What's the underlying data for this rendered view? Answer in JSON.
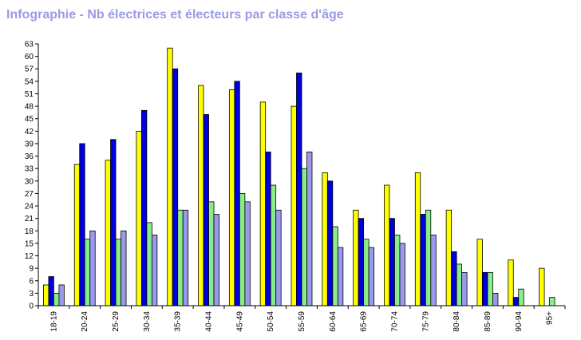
{
  "chart_data": {
    "type": "bar",
    "title": "Infographie - Nb électrices et électeurs par classe d'âge",
    "xlabel": "",
    "ylabel": "",
    "ylim": [
      0,
      63
    ],
    "yticks": [
      0,
      3,
      6,
      9,
      12,
      15,
      18,
      21,
      24,
      27,
      30,
      33,
      36,
      39,
      42,
      45,
      48,
      51,
      54,
      57,
      60,
      63
    ],
    "grid": false,
    "legend": "none",
    "categories": [
      "18-19",
      "20-24",
      "25-29",
      "30-34",
      "35-39",
      "40-44",
      "45-49",
      "50-54",
      "55-59",
      "60-64",
      "65-69",
      "70-74",
      "75-79",
      "80-84",
      "85-89",
      "90-94",
      "95+"
    ],
    "series": [
      {
        "color": "#ffff00",
        "values": [
          5,
          34,
          35,
          42,
          62,
          53,
          52,
          49,
          48,
          32,
          23,
          29,
          32,
          23,
          16,
          11,
          9
        ]
      },
      {
        "color": "#0000dd",
        "values": [
          7,
          39,
          40,
          47,
          57,
          46,
          54,
          37,
          56,
          30,
          21,
          21,
          22,
          13,
          8,
          2,
          0
        ]
      },
      {
        "color": "#88ee88",
        "values": [
          3,
          16,
          16,
          20,
          23,
          25,
          27,
          29,
          33,
          19,
          16,
          17,
          23,
          10,
          8,
          4,
          2
        ]
      },
      {
        "color": "#9999ee",
        "values": [
          5,
          18,
          18,
          17,
          23,
          22,
          25,
          23,
          37,
          14,
          14,
          15,
          17,
          8,
          3,
          0,
          0
        ]
      }
    ]
  }
}
